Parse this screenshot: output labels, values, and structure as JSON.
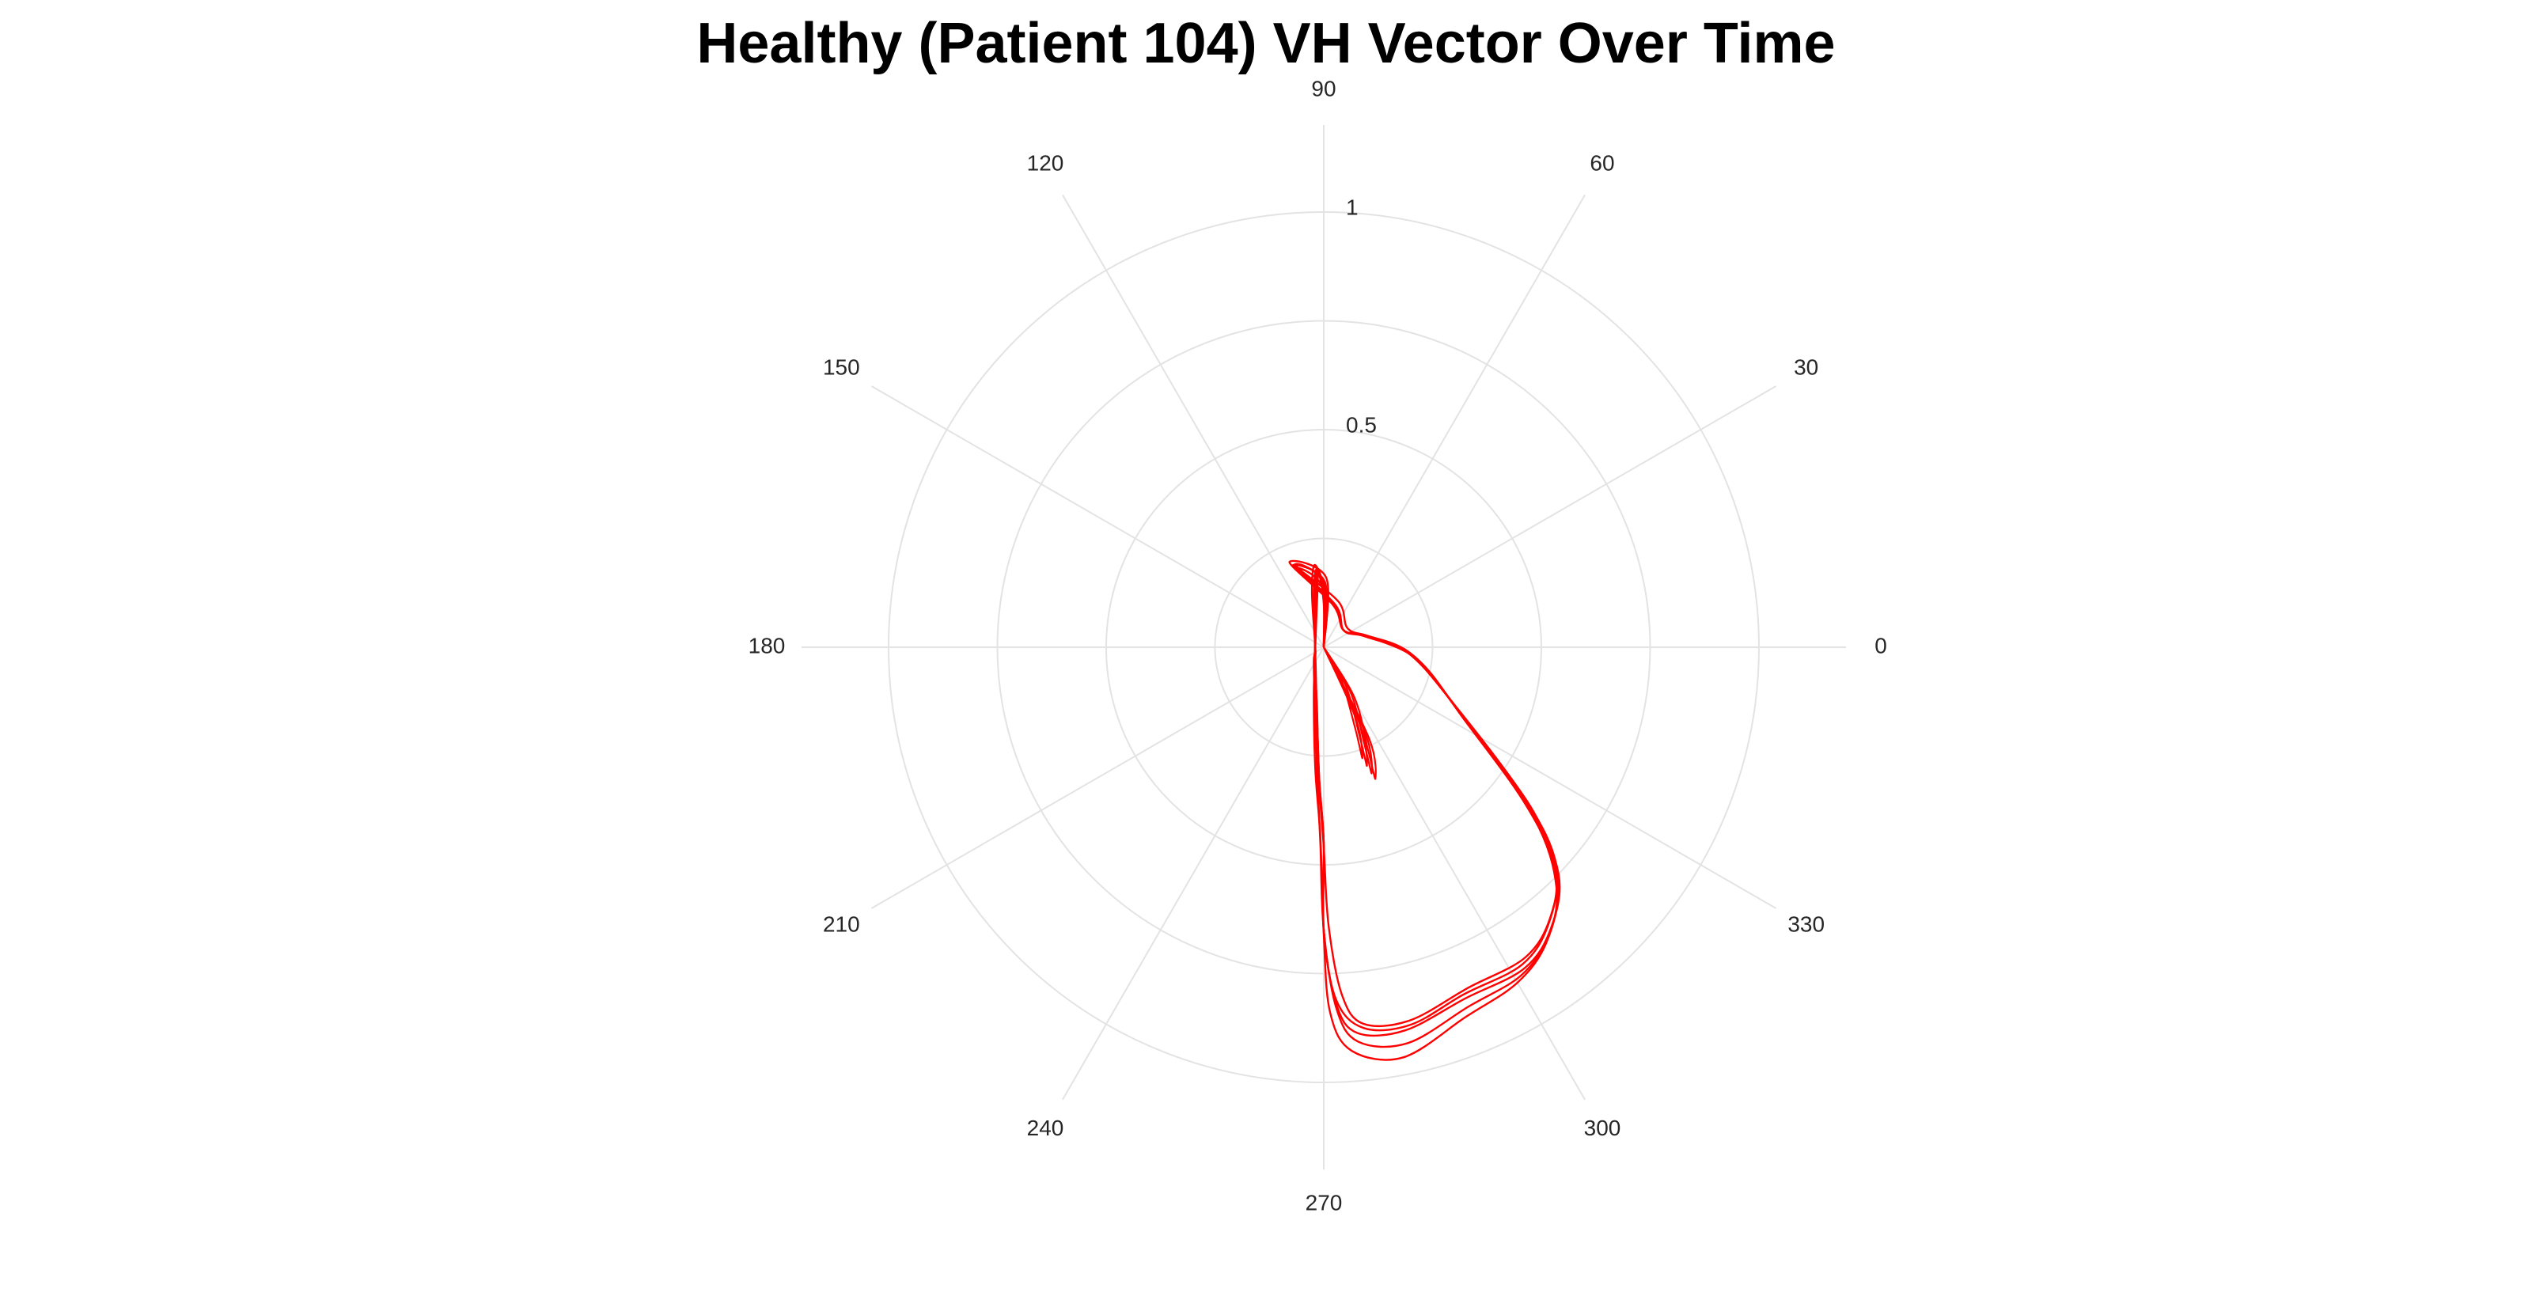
{
  "chart_data": {
    "type": "line",
    "coordinate_system": "polar",
    "title": "Healthy (Patient 104) VH Vector Over Time",
    "theta_unit": "degrees",
    "theta_ticks": [
      0,
      30,
      60,
      90,
      120,
      150,
      180,
      210,
      240,
      270,
      300,
      330
    ],
    "theta_tick_labels": [
      "0",
      "30",
      "60",
      "90",
      "120",
      "150",
      "180",
      "210",
      "240",
      "270",
      "300",
      "330"
    ],
    "r_ticks": [
      0.5,
      1
    ],
    "r_tick_labels": [
      "0.5",
      "1"
    ],
    "rlim": [
      0,
      1.2
    ],
    "grid": true,
    "legend": "none",
    "line_color": "#ff0000",
    "series": [
      {
        "theta": [
          0,
          90,
          110,
          75,
          40,
          15,
          355,
          335,
          322,
          316,
          309,
          302,
          292,
          282,
          275,
          272,
          270,
          270,
          268,
          262,
          240,
          180,
          100,
          95,
          88,
          0
        ],
        "r": [
          0.0,
          0.15,
          0.2,
          0.1,
          0.06,
          0.1,
          0.2,
          0.34,
          0.6,
          0.75,
          0.83,
          0.87,
          0.87,
          0.9,
          0.89,
          0.82,
          0.65,
          0.45,
          0.3,
          0.12,
          0.04,
          0.02,
          0.12,
          0.18,
          0.1,
          0.0
        ]
      },
      {
        "theta": [
          0,
          92,
          108,
          72,
          38,
          12,
          352,
          333,
          321,
          314,
          307,
          300,
          291,
          281,
          274,
          271,
          270,
          269,
          266,
          258,
          230,
          170,
          102,
          96,
          86,
          0
        ],
        "r": [
          0.0,
          0.14,
          0.19,
          0.11,
          0.07,
          0.11,
          0.22,
          0.36,
          0.62,
          0.77,
          0.85,
          0.89,
          0.91,
          0.96,
          0.93,
          0.84,
          0.66,
          0.44,
          0.28,
          0.11,
          0.03,
          0.02,
          0.13,
          0.19,
          0.11,
          0.0
        ]
      },
      {
        "theta": [
          0,
          88,
          112,
          78,
          42,
          18,
          357,
          337,
          323,
          317,
          310,
          303,
          293,
          283,
          276,
          273,
          271,
          270,
          268,
          263,
          245,
          190,
          98,
          94,
          90,
          0
        ],
        "r": [
          0.0,
          0.16,
          0.21,
          0.1,
          0.06,
          0.09,
          0.19,
          0.32,
          0.58,
          0.73,
          0.81,
          0.85,
          0.85,
          0.88,
          0.87,
          0.8,
          0.64,
          0.46,
          0.31,
          0.13,
          0.05,
          0.02,
          0.11,
          0.17,
          0.1,
          0.0
        ]
      },
      {
        "theta": [
          0,
          91,
          109,
          74,
          39,
          14,
          354,
          334,
          322,
          315,
          308,
          301,
          292,
          282,
          275,
          272,
          270,
          269,
          267,
          260,
          235,
          175,
          101,
          95,
          87,
          0
        ],
        "r": [
          0.0,
          0.15,
          0.2,
          0.1,
          0.06,
          0.1,
          0.21,
          0.35,
          0.61,
          0.76,
          0.84,
          0.88,
          0.89,
          0.93,
          0.91,
          0.83,
          0.65,
          0.45,
          0.29,
          0.12,
          0.04,
          0.02,
          0.12,
          0.18,
          0.1,
          0.0
        ]
      },
      {
        "theta": [
          0,
          89,
          111,
          76,
          41,
          16,
          356,
          336,
          322,
          316,
          309,
          302,
          292,
          283,
          276,
          272,
          270,
          270,
          268,
          262,
          242,
          185,
          99,
          94,
          89,
          0
        ],
        "r": [
          0.0,
          0.15,
          0.2,
          0.1,
          0.06,
          0.1,
          0.2,
          0.33,
          0.59,
          0.74,
          0.82,
          0.86,
          0.86,
          0.89,
          0.88,
          0.81,
          0.65,
          0.45,
          0.3,
          0.12,
          0.04,
          0.02,
          0.12,
          0.18,
          0.1,
          0.0
        ]
      }
    ],
    "extra_lobe": {
      "theta": [
        0,
        300,
        292,
        290,
        295,
        0
      ],
      "r": [
        0.0,
        0.1,
        0.22,
        0.29,
        0.2,
        0.0
      ]
    }
  }
}
